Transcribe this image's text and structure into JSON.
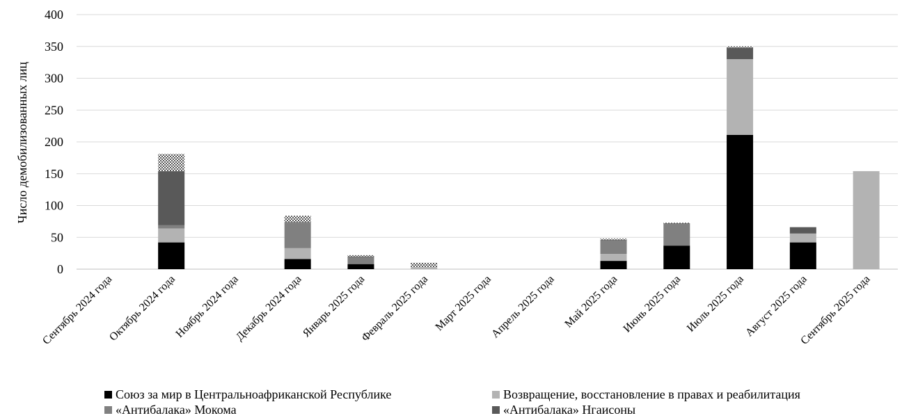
{
  "chart_data": {
    "type": "bar",
    "stacked": true,
    "title": "",
    "xlabel": "",
    "ylabel": "Число демобилизованных лиц",
    "ylim": [
      0,
      400
    ],
    "yticks": [
      0,
      50,
      100,
      150,
      200,
      250,
      300,
      350,
      400
    ],
    "grid": true,
    "legend_position": "bottom",
    "categories": [
      "Сентябрь 2024 года",
      "Октябрь 2024 года",
      "Ноябрь 2024 года",
      "Декабрь 2024 года",
      "Январь 2025 года",
      "Февраль 2025 года",
      "Март 2025 года",
      "Апрель 2025 года",
      "Май 2025 года",
      "Июнь 2025 года",
      "Июль 2025 года",
      "Август 2025 года",
      "Сентябрь 2025 года"
    ],
    "series": [
      {
        "name": "Союз за мир в Центральноафриканской Республике",
        "color": "#000000",
        "values": [
          0,
          42,
          0,
          16,
          8,
          0,
          0,
          0,
          13,
          37,
          211,
          42,
          0
        ]
      },
      {
        "name": "Возвращение, восстановление в правах и реабилитация",
        "color": "#b3b3b3",
        "values": [
          0,
          22,
          0,
          17,
          0,
          3,
          0,
          0,
          11,
          0,
          119,
          14,
          154
        ]
      },
      {
        "name": "«Антибалака» Мокома",
        "color": "#808080",
        "values": [
          0,
          5,
          0,
          40,
          11,
          0,
          0,
          0,
          21,
          34,
          0,
          0,
          0
        ]
      },
      {
        "name": "«Антибалака» Нгаисоны",
        "color": "#595959",
        "values": [
          0,
          85,
          0,
          1,
          1,
          0,
          0,
          0,
          1,
          1,
          18,
          10,
          0
        ]
      },
      {
        "name": "",
        "color": "pattern",
        "values": [
          0,
          27,
          0,
          10,
          2,
          7,
          0,
          0,
          2,
          1,
          2,
          0,
          0
        ]
      }
    ]
  }
}
